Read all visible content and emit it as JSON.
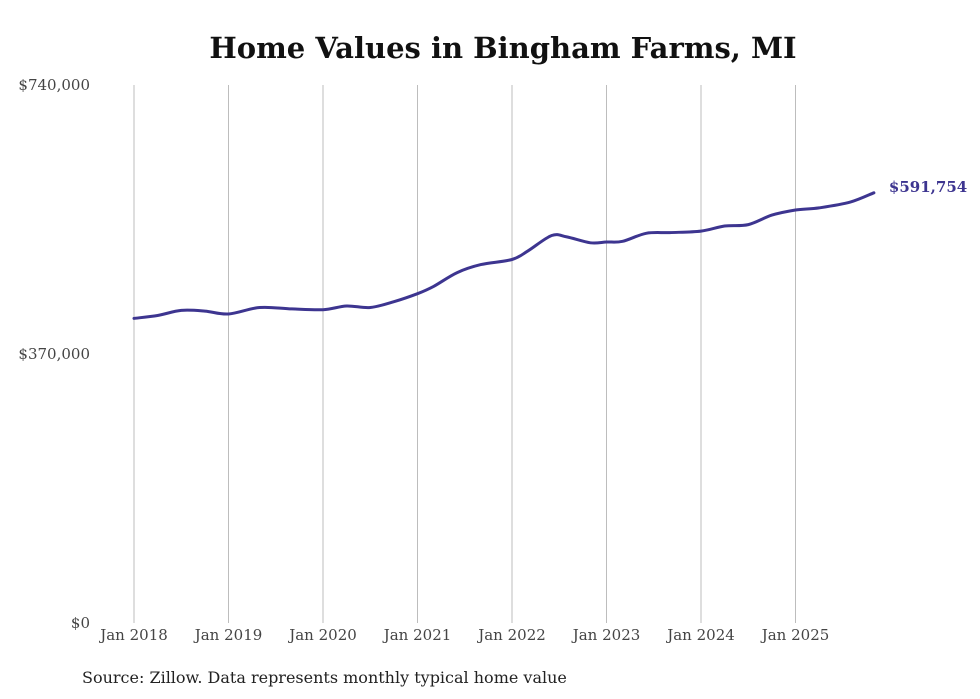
{
  "chart_data": {
    "type": "line",
    "title": "Home Values in Bingham Farms, MI",
    "xlabel": "",
    "ylabel": "",
    "ylim": [
      0,
      740000
    ],
    "yticks": [
      0,
      370000,
      740000
    ],
    "ytick_labels": [
      "$0",
      "$370,000",
      "$740,000"
    ],
    "xticks": [
      2018,
      2019,
      2020,
      2021,
      2022,
      2023,
      2024,
      2025
    ],
    "xtick_labels": [
      "Jan 2018",
      "Jan 2019",
      "Jan 2020",
      "Jan 2021",
      "Jan 2022",
      "Jan 2023",
      "Jan 2024",
      "Jan 2025"
    ],
    "grid": "vertical",
    "series": [
      {
        "name": "Typical home value",
        "color": "#3d3590",
        "points": [
          [
            2018.0,
            419000
          ],
          [
            2018.25,
            423000
          ],
          [
            2018.5,
            430000
          ],
          [
            2018.75,
            429000
          ],
          [
            2019.0,
            425000
          ],
          [
            2019.33,
            434000
          ],
          [
            2019.67,
            432000
          ],
          [
            2020.0,
            431000
          ],
          [
            2020.25,
            436000
          ],
          [
            2020.5,
            434000
          ],
          [
            2020.75,
            442000
          ],
          [
            2021.0,
            453000
          ],
          [
            2021.17,
            463000
          ],
          [
            2021.42,
            482000
          ],
          [
            2021.67,
            493000
          ],
          [
            2022.0,
            500000
          ],
          [
            2022.17,
            512000
          ],
          [
            2022.42,
            533000
          ],
          [
            2022.58,
            531000
          ],
          [
            2022.83,
            523000
          ],
          [
            2023.0,
            524000
          ],
          [
            2023.17,
            525000
          ],
          [
            2023.42,
            536000
          ],
          [
            2023.67,
            537000
          ],
          [
            2024.0,
            539000
          ],
          [
            2024.25,
            546000
          ],
          [
            2024.5,
            548000
          ],
          [
            2024.75,
            561000
          ],
          [
            2025.0,
            568000
          ],
          [
            2025.25,
            571000
          ],
          [
            2025.58,
            579000
          ],
          [
            2025.83,
            591754
          ]
        ]
      }
    ],
    "end_label": "$591,754"
  },
  "footer": {
    "source": "Source: Zillow. Data represents monthly typical home value"
  }
}
